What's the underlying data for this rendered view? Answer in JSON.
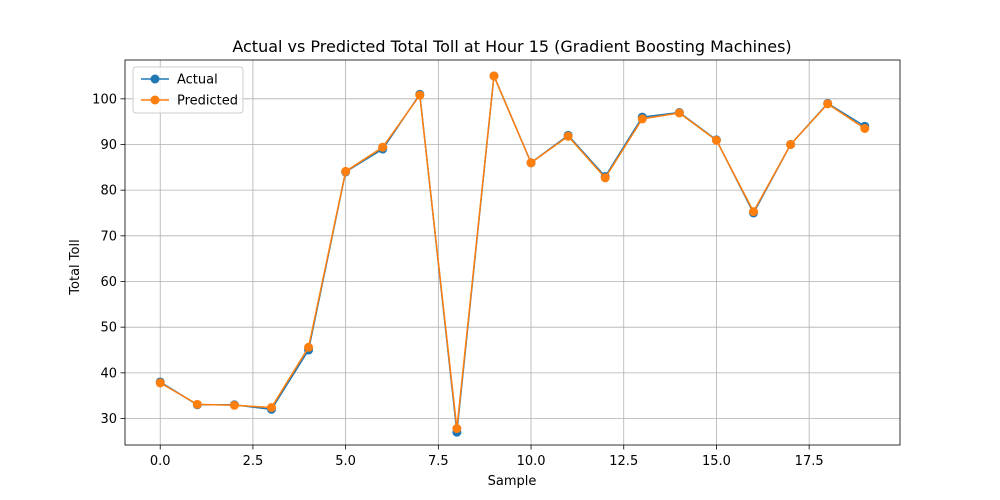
{
  "chart_data": {
    "type": "line",
    "title": "Actual vs Predicted Total Toll at Hour 15 (Gradient Boosting Machines)",
    "xlabel": "Sample",
    "ylabel": "Total Toll",
    "x": [
      0,
      1,
      2,
      3,
      4,
      5,
      6,
      7,
      8,
      9,
      10,
      11,
      12,
      13,
      14,
      15,
      16,
      17,
      18,
      19
    ],
    "xlim": [
      -0.95,
      19.95
    ],
    "ylim": [
      24.2,
      108.5
    ],
    "x_ticks": [
      0.0,
      2.5,
      5.0,
      7.5,
      10.0,
      12.5,
      15.0,
      17.5
    ],
    "x_tick_labels": [
      "0.0",
      "2.5",
      "5.0",
      "7.5",
      "10.0",
      "12.5",
      "15.0",
      "17.5"
    ],
    "y_ticks": [
      30,
      40,
      50,
      60,
      70,
      80,
      90,
      100
    ],
    "y_tick_labels": [
      "30",
      "40",
      "50",
      "60",
      "70",
      "80",
      "90",
      "100"
    ],
    "grid": true,
    "legend_position": "top-left",
    "series": [
      {
        "name": "Actual",
        "color": "#1f77b4",
        "marker": "circle",
        "values": [
          38,
          33,
          33,
          32,
          45,
          84,
          89,
          101,
          27,
          105,
          86,
          92,
          83,
          96,
          97,
          91,
          75,
          90,
          99,
          94
        ]
      },
      {
        "name": "Predicted",
        "color": "#ff7f0e",
        "marker": "circle",
        "values": [
          37.8,
          33.1,
          32.9,
          32.4,
          45.6,
          84.1,
          89.4,
          100.8,
          27.8,
          105,
          86,
          91.8,
          82.7,
          95.6,
          96.9,
          90.9,
          75.3,
          90,
          98.9,
          93.5
        ]
      }
    ]
  }
}
